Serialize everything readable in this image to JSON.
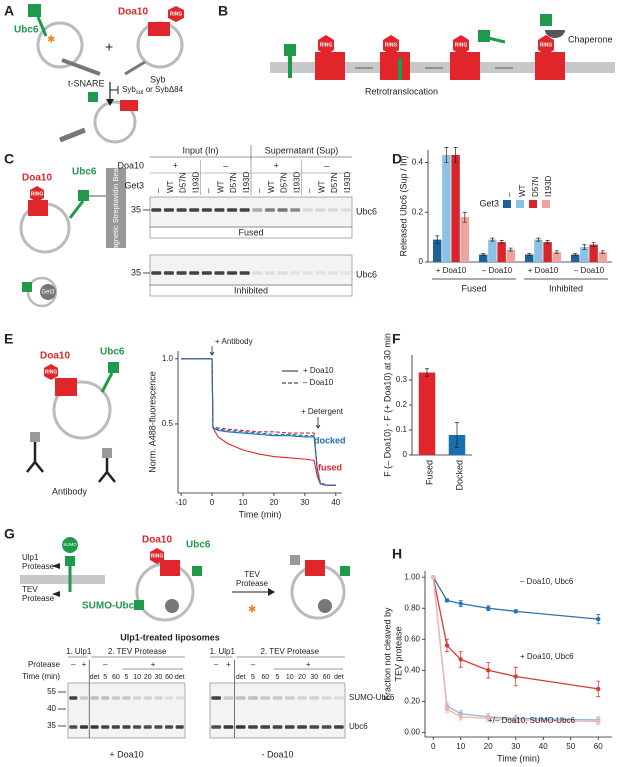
{
  "panel_labels": [
    "A",
    "B",
    "C",
    "D",
    "E",
    "F",
    "G",
    "H"
  ],
  "panel_a": {
    "ubc6": "Ubc6",
    "doa10": "Doa10",
    "ring": "RING",
    "t_snare": "t-SNARE",
    "syb": "Syb",
    "plus": "+",
    "inhibitor": [
      "Syb",
      "sol",
      " or SybΔ84"
    ]
  },
  "panel_b": {
    "rings": [
      "RING",
      "RING",
      "RING",
      "RING"
    ],
    "chaperone": "Chaperone",
    "process": "Retrotranslocation"
  },
  "panel_c": {
    "doa10": "Doa10",
    "ubc6": "Ubc6",
    "ring": "RING",
    "beads": "Magnetic Streptavidin Beads",
    "get3": "Get3",
    "table": {
      "headers": [
        "Input (In)",
        "Supernatant (Sup)"
      ],
      "row_labels": [
        "Doa10",
        "Get3"
      ],
      "doa10": [
        "+",
        "–",
        "+",
        "–"
      ],
      "get3": [
        "–",
        "WT",
        "D57N",
        "I193D",
        "–",
        "WT",
        "D57N",
        "I193D",
        "–",
        "WT",
        "D57N",
        "I193D",
        "–",
        "WT",
        "D57N",
        "I193D"
      ]
    },
    "gels": [
      {
        "marker": "35",
        "band": "Ubc6",
        "caption": "Fused"
      },
      {
        "marker": "35",
        "band": "Ubc6",
        "caption": "Inhibited"
      }
    ]
  },
  "panel_e": {
    "doa10": "Doa10",
    "ubc6": "Ubc6",
    "ring": "RING",
    "antibody": "Antibody"
  },
  "panel_g": {
    "sumo": "SUMO",
    "ulp1": [
      "Ulp1",
      "Protease"
    ],
    "tev": [
      "TEV",
      "Protease"
    ],
    "sumo_ubc6": "SUMO-Ubc6",
    "doa10": "Doa10",
    "ubc6": "Ubc6",
    "ring": "RING",
    "arrow": [
      "TEV",
      "Protease"
    ],
    "caption": "Ulp1-treated liposomes",
    "row_labels": [
      "Protease",
      "Time (min)"
    ],
    "markers": [
      "55",
      "40",
      "35"
    ],
    "bands": [
      "SUMO-Ubc6",
      "Ubc6"
    ],
    "gels": [
      {
        "headers": [
          "1. Ulp1",
          "2. TEV Protease"
        ],
        "protease": [
          "–",
          "+",
          "–",
          "+"
        ],
        "times": [
          "det",
          "5",
          "60",
          "5",
          "10",
          "20",
          "30",
          "60",
          "det"
        ],
        "caption": "+ Doa10"
      },
      {
        "headers": [
          "1. Ulp1",
          "2. TEV Protease"
        ],
        "protease": [
          "–",
          "+",
          "–",
          "+"
        ],
        "times": [
          "det",
          "5",
          "60",
          "5",
          "10",
          "20",
          "30",
          "60",
          "det"
        ],
        "caption": "- Doa10"
      }
    ]
  },
  "chart_data": [
    {
      "type": "bar",
      "y_label": "Released Ubc6 (Sup / In)",
      "legend_title": "Get3",
      "categories": [
        "+ Doa10",
        "– Doa10",
        "+ Doa10",
        "– Doa10"
      ],
      "group_labels": [
        "Fused",
        "Inhibited"
      ],
      "series": [
        {
          "name": "–",
          "color": "#1f5f9a",
          "values": [
            0.09,
            0.03,
            0.03,
            0.03
          ],
          "errors": [
            0.015,
            0.005,
            0.005,
            0.005
          ]
        },
        {
          "name": "WT",
          "color": "#8cc1e6",
          "values": [
            0.43,
            0.09,
            0.09,
            0.06
          ],
          "errors": [
            0.03,
            0.006,
            0.006,
            0.01
          ]
        },
        {
          "name": "D57N",
          "color": "#d7262b",
          "values": [
            0.43,
            0.08,
            0.08,
            0.07
          ],
          "errors": [
            0.03,
            0.006,
            0.006,
            0.008
          ]
        },
        {
          "name": "I193D",
          "color": "#f0a39c",
          "values": [
            0.18,
            0.05,
            0.04,
            0.04
          ],
          "errors": [
            0.02,
            0.006,
            0.005,
            0.005
          ]
        }
      ],
      "ylim": [
        0,
        0.45
      ],
      "yticks": [
        0,
        0.2,
        0.4
      ]
    },
    {
      "type": "line",
      "x_label": "Time (min)",
      "y_label": "Norm. A488-fluorescence",
      "annotations": [
        "+ Antibody",
        "+ Detergent",
        "docked",
        "fused"
      ],
      "legend": [
        {
          "label": "+ Doa10",
          "dash": false
        },
        {
          "label": "– Doa10",
          "dash": true
        }
      ],
      "x": [
        -10,
        -5,
        0,
        0.3,
        2,
        5,
        10,
        15,
        20,
        25,
        30,
        33,
        34,
        35,
        37,
        40
      ],
      "series": [
        {
          "color": "#e0262a",
          "dash": false,
          "values": [
            1.0,
            1.0,
            1.0,
            0.47,
            0.4,
            0.35,
            0.3,
            0.27,
            0.25,
            0.24,
            0.23,
            0.22,
            0.1,
            0.04,
            0.03,
            0.03
          ]
        },
        {
          "color": "#1b6fae",
          "dash": false,
          "values": [
            1.0,
            1.0,
            1.0,
            0.47,
            0.45,
            0.44,
            0.43,
            0.42,
            0.41,
            0.41,
            0.4,
            0.4,
            0.15,
            0.04,
            0.03,
            0.03
          ]
        },
        {
          "color": "#e0262a",
          "dash": true,
          "values": [
            1.0,
            1.0,
            1.0,
            0.48,
            0.47,
            0.46,
            0.45,
            0.44,
            0.44,
            0.43,
            0.43,
            0.43,
            0.16,
            0.05,
            0.03,
            0.03
          ]
        },
        {
          "color": "#1b6fae",
          "dash": true,
          "values": [
            1.0,
            1.0,
            1.0,
            0.47,
            0.46,
            0.45,
            0.44,
            0.43,
            0.42,
            0.42,
            0.41,
            0.41,
            0.15,
            0.04,
            0.03,
            0.03
          ]
        }
      ],
      "xlim": [
        -11,
        42
      ],
      "xticks": [
        -10,
        0,
        10,
        20,
        30,
        40
      ],
      "ylim": [
        -0.03,
        1.06
      ],
      "yticks": [
        0.5,
        {
          "value": 1,
          "label": "1.0"
        }
      ]
    },
    {
      "type": "bar",
      "y_label": "F (– Doa10) - F (+ Doa10) at 30 min",
      "categories": [
        "Fused",
        "Docked"
      ],
      "values": [
        0.33,
        0.08
      ],
      "errors": [
        0.015,
        0.05
      ],
      "colors": [
        "#e0262a",
        "#1b6fae"
      ],
      "ylim": [
        0,
        0.4
      ],
      "yticks": [
        0,
        0.1,
        0.2,
        0.3
      ]
    },
    {
      "type": "line",
      "x_label": "Time (min)",
      "y_label": [
        "Fraction not cleaved by",
        "TEV protease"
      ],
      "x": [
        0,
        5,
        10,
        20,
        30,
        60
      ],
      "series": [
        {
          "name": "– Doa10, Ubc6",
          "color": "#2a72b5",
          "values": [
            1.0,
            0.85,
            0.83,
            0.8,
            0.78,
            0.73
          ],
          "errors": [
            0,
            0.01,
            0.02,
            0.015,
            0.01,
            0.03
          ]
        },
        {
          "name": "+ Doa10, Ubc6",
          "color": "#d93a34",
          "values": [
            1.0,
            0.56,
            0.47,
            0.4,
            0.36,
            0.28
          ],
          "errors": [
            0,
            0.04,
            0.05,
            0.05,
            0.06,
            0.05
          ]
        },
        {
          "name": "+/– Doa10, SUMO-Ubc6",
          "color": "#8fb8de",
          "values": [
            1.0,
            0.17,
            0.12,
            0.1,
            0.09,
            0.08
          ],
          "errors": [
            0,
            0.02,
            0.02,
            0.02,
            0.02,
            0.02
          ]
        },
        {
          "color": "#f2b5b0",
          "values": [
            1.0,
            0.15,
            0.1,
            0.09,
            0.08,
            0.07
          ],
          "errors": [
            0,
            0.02,
            0.02,
            0.02,
            0.02,
            0.02
          ]
        }
      ],
      "xlim": [
        -3,
        65
      ],
      "xticks": [
        0,
        10,
        20,
        30,
        40,
        50,
        60
      ],
      "ylim": [
        -0.03,
        1.04
      ],
      "yticks": [
        {
          "value": 0,
          "label": "0.00"
        },
        {
          "value": 0.2,
          "label": "0.20"
        },
        {
          "value": 0.4,
          "label": "0.40"
        },
        {
          "value": 0.6,
          "label": "0.60"
        },
        {
          "value": 0.8,
          "label": "0.80"
        },
        {
          "value": 1,
          "label": "1.00"
        }
      ]
    }
  ]
}
